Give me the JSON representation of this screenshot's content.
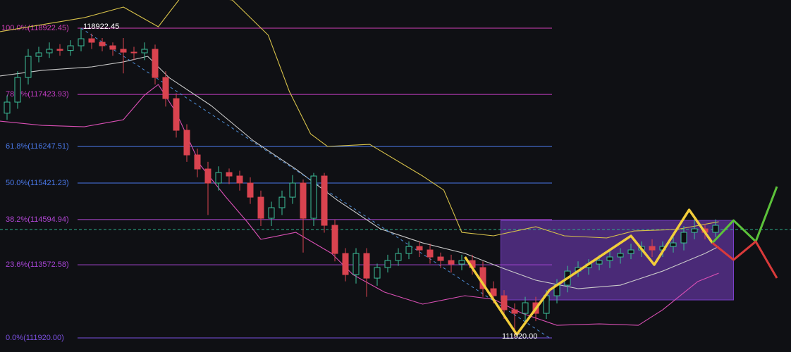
{
  "chart_data": {
    "type": "candlestick",
    "ylim": [
      111602,
      119559
    ],
    "up_color": "#3cbf9a",
    "down_color": "#d9434f",
    "open": [
      117000,
      117251,
      117808,
      118285,
      118365,
      118445,
      118420,
      118524,
      118683,
      118604,
      118524,
      118445,
      118380,
      118365,
      118445,
      117808,
      117330,
      116614,
      116057,
      115739,
      115421,
      115659,
      115580,
      115421,
      115102,
      114625,
      114864,
      115102,
      115421,
      114625,
      115580,
      114466,
      113829,
      113352,
      113829,
      113272,
      113511,
      113670,
      113829,
      113988,
      113909,
      113750,
      113670,
      113590,
      113670,
      113511,
      113033,
      112874,
      112556,
      112476,
      112715,
      112476,
      112874,
      113113,
      113431,
      113511,
      113590,
      113670,
      113750,
      113829,
      113909,
      113988,
      113909,
      113988,
      114068,
      114307,
      114386,
      114307
    ],
    "high": [
      117400,
      117950,
      118450,
      118500,
      118600,
      118560,
      118650,
      118922.45,
      118800,
      118700,
      118600,
      118700,
      118500,
      118600,
      118550,
      117950,
      117450,
      116750,
      116200,
      115900,
      115800,
      115750,
      115700,
      115550,
      115250,
      115000,
      115250,
      115600,
      115500,
      115650,
      115650,
      114600,
      113950,
      113950,
      113950,
      113600,
      113800,
      113950,
      114100,
      114100,
      114050,
      113850,
      113800,
      113800,
      113800,
      113650,
      113200,
      113000,
      112700,
      112850,
      112850,
      113000,
      113250,
      113550,
      113650,
      113700,
      113800,
      113880,
      113950,
      114050,
      114100,
      114150,
      114100,
      114200,
      114450,
      114600,
      114500,
      114600
    ],
    "low": [
      116850,
      117100,
      117650,
      118150,
      118250,
      118300,
      118300,
      118400,
      118450,
      118400,
      118300,
      117900,
      118200,
      118200,
      117650,
      117150,
      116450,
      115900,
      115550,
      114700,
      115250,
      115400,
      115250,
      114950,
      114450,
      114450,
      114700,
      114950,
      113850,
      114450,
      114300,
      113650,
      113200,
      113150,
      112850,
      113100,
      113400,
      113550,
      113700,
      113750,
      113600,
      113500,
      113400,
      113450,
      113350,
      112850,
      112700,
      112350,
      111920,
      112300,
      112300,
      112350,
      112700,
      112950,
      113300,
      113350,
      113450,
      113500,
      113600,
      113700,
      113750,
      113750,
      113750,
      113850,
      113900,
      114150,
      114150,
      114200
    ],
    "close": [
      117251,
      117808,
      118285,
      118365,
      118445,
      118420,
      118524,
      118683,
      118604,
      118524,
      118445,
      118380,
      118365,
      118445,
      117808,
      117330,
      116614,
      116057,
      115739,
      115421,
      115659,
      115580,
      115421,
      115102,
      114625,
      114864,
      115102,
      115421,
      114625,
      115580,
      114466,
      113829,
      113352,
      113829,
      113272,
      113511,
      113670,
      113829,
      113988,
      113909,
      113750,
      113670,
      113590,
      113670,
      113511,
      113033,
      112874,
      112556,
      112476,
      112715,
      112476,
      112874,
      113113,
      113431,
      113511,
      113590,
      113670,
      113750,
      113829,
      113909,
      113988,
      113909,
      113988,
      114068,
      114307,
      114386,
      114307,
      114466
    ],
    "bands": [
      {
        "color": "#d8c24a",
        "x": [
          -0.7,
          7.3,
          11,
          14.3,
          16.7,
          21.3,
          24.7,
          26.7,
          28.7,
          30.3,
          34.3,
          39.3,
          41.3,
          43,
          46,
          50,
          52.7,
          56.7,
          59.3,
          63.3,
          67.3
        ],
        "values": [
          118842,
          119160,
          119400,
          118954,
          119700,
          119559,
          118763,
          117490,
          116535,
          116249,
          116296,
          115580,
          115261,
          114307,
          114228,
          114434,
          114228,
          114180,
          114339,
          114371,
          114546
        ]
      },
      {
        "color": "#c9c9c9",
        "x": [
          -0.7,
          3.3,
          8,
          11,
          13.3,
          15.3,
          19.3,
          23.3,
          27.3,
          31.3,
          35.3,
          39.3,
          43.3,
          46.7,
          50,
          54,
          58,
          62,
          66,
          67.3
        ],
        "values": [
          117840,
          117968,
          118047,
          118159,
          118286,
          117808,
          117172,
          116376,
          115739,
          115023,
          114386,
          114068,
          113830,
          113511,
          113225,
          113034,
          113113,
          113431,
          113830,
          113988
        ]
      },
      {
        "color": "#d94fb4",
        "x": [
          -0.7,
          3.3,
          7.3,
          11,
          13,
          14.3,
          16,
          18.3,
          20.7,
          22.7,
          24,
          27.3,
          30.7,
          32.7,
          35.7,
          39.3,
          43.3,
          46,
          48.7,
          52,
          56,
          59.7,
          62,
          65.3,
          67.3
        ],
        "values": [
          116822,
          116726,
          116694,
          116853,
          117410,
          117649,
          117013,
          115819,
          115103,
          114546,
          114148,
          114307,
          113830,
          113352,
          112955,
          112684,
          112875,
          112795,
          112477,
          112206,
          112238,
          112206,
          112556,
          113193,
          113384
        ]
      }
    ],
    "fib_levels": [
      {
        "value": 118922.45,
        "label": "100.0%(118922.45)",
        "color": "#d23fb6"
      },
      {
        "value": 117423.93,
        "label": "78.6%(117423.93)",
        "color": "#c33cc4"
      },
      {
        "value": 116247.51,
        "label": "61.8%(116247.51)",
        "color": "#4a78e8"
      },
      {
        "value": 115421.23,
        "label": "50.0%(115421.23)",
        "color": "#4a78e8"
      },
      {
        "value": 114594.94,
        "label": "38.2%(114594.94)",
        "color": "#b146d4"
      },
      {
        "value": 113572.58,
        "label": "23.6%(113572.58)",
        "color": "#a745d6"
      },
      {
        "value": 111920,
        "label": "0.0%(111920.00)",
        "color": "#7a4fe0"
      }
    ],
    "trendline": {
      "color": "#4f8fd8",
      "x": [
        7,
        51.3
      ],
      "values": [
        118922.45,
        111920
      ]
    },
    "last_price": {
      "value": 114370,
      "color": "#2fae8a"
    },
    "box": {
      "color": "#7b3fc9",
      "x": [
        46.7,
        68.7
      ],
      "y": [
        112779,
        114577
      ]
    },
    "pattern": {
      "color": "#f2cd3a",
      "x": [
        43.3,
        48.2,
        51.3,
        59,
        61.2,
        64.5,
        66.7
      ],
      "values": [
        113750,
        111999,
        113002,
        114227,
        113575,
        114816,
        114068
      ]
    },
    "projections": [
      {
        "color": "#5cc23a",
        "x": [
          66.7,
          68.7,
          70.8,
          72.8
        ],
        "values": [
          114068,
          114577,
          114100,
          115341
        ]
      },
      {
        "color": "#d93a3a",
        "x": [
          66.7,
          68.7,
          70.8,
          72.8
        ],
        "values": [
          114068,
          113686,
          114100,
          113272
        ]
      }
    ],
    "annotations": [
      118922.45,
      {
        "value": 111920,
        "label": "111920.00"
      }
    ]
  }
}
